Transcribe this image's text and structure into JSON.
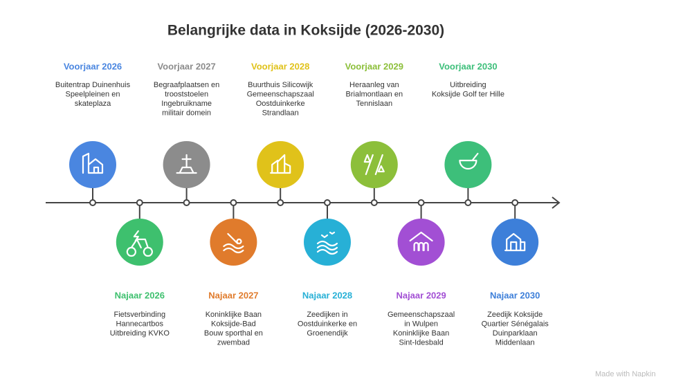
{
  "title": "Belangrijke data in Koksijde (2026-2030)",
  "milestones": [
    {
      "label": "Voorjaar 2026",
      "color": "#4a86e0",
      "lines": [
        "Buitentrap Duinenhuis",
        "Speelpleinen en",
        "skateplaza"
      ]
    },
    {
      "label": "Najaar 2026",
      "color": "#3ec06e",
      "lines": [
        "Fietsverbinding",
        "Hannecartbos",
        "Uitbreiding KVKO"
      ]
    },
    {
      "label": "Voorjaar 2027",
      "color": "#8c8c8c",
      "lines": [
        "Begraafplaatsen en",
        "trooststoelen",
        "Ingebruikname",
        "militair domein"
      ]
    },
    {
      "label": "Najaar 2027",
      "color": "#e07b2c",
      "lines": [
        "Koninklijke Baan",
        "Koksijde-Bad",
        "Bouw sporthal en",
        "zwembad"
      ]
    },
    {
      "label": "Voorjaar 2028",
      "color": "#e0c21a",
      "lines": [
        "Buurthuis Silicowijk",
        "Gemeenschapszaal",
        "Oostduinkerke",
        "Strandlaan"
      ]
    },
    {
      "label": "Najaar 2028",
      "color": "#27b0d6",
      "lines": [
        "Zeedijken in",
        "Oostduinkerke en",
        "Groenendijk"
      ]
    },
    {
      "label": "Voorjaar 2029",
      "color": "#8cbf3a",
      "lines": [
        "Heraanleg van",
        "Brialmontlaan en",
        "Tennislaan"
      ]
    },
    {
      "label": "Najaar 2029",
      "color": "#a24fd4",
      "lines": [
        "Gemeenschapszaal",
        "in Wulpen",
        "Koninklijke Baan",
        "Sint-Idesbald"
      ]
    },
    {
      "label": "Voorjaar 2030",
      "color": "#3dbf7a",
      "lines": [
        "Uitbreiding",
        "Koksijde Golf ter Hille"
      ]
    },
    {
      "label": "Najaar 2030",
      "color": "#3d7fd9",
      "lines": [
        "Zeedijk Koksijde",
        "Quartier Sénégalais",
        "Duinparklaan",
        "Middenlaan"
      ]
    }
  ],
  "watermark": "Made with Napkin"
}
